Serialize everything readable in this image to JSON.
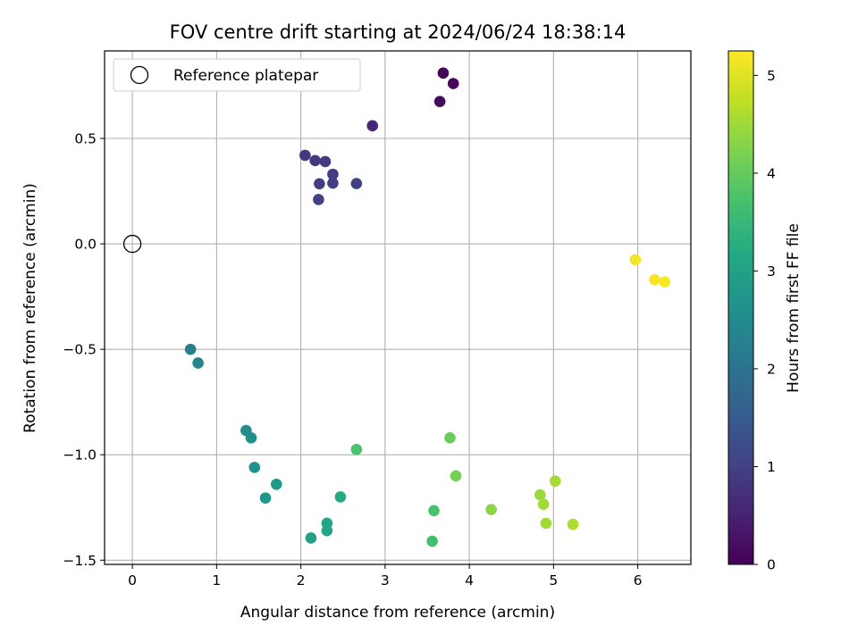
{
  "chart_data": {
    "type": "scatter",
    "title": "FOV centre drift starting at 2024/06/24 18:38:14",
    "xlabel": "Angular distance from reference (arcmin)",
    "ylabel": "Rotation from reference (arcmin)",
    "xlim": [
      -0.33,
      6.63
    ],
    "ylim": [
      -1.52,
      0.915
    ],
    "xticks": [
      0,
      1,
      2,
      3,
      4,
      5,
      6
    ],
    "yticks": [
      -1.5,
      -1.0,
      -0.5,
      0.0,
      0.5
    ],
    "ytick_labels": [
      "−1.5",
      "−1.0",
      "−0.5",
      "0.0",
      "0.5"
    ],
    "grid": true,
    "legend": {
      "placement": "top-left",
      "entries": [
        "Reference platepar"
      ]
    },
    "reference_point": {
      "x": 0.0,
      "y": 0.0,
      "label": "Reference platepar"
    },
    "colorbar": {
      "label": "Hours from first FF file",
      "range": [
        0,
        5.25
      ],
      "ticks": [
        0,
        1,
        2,
        3,
        4,
        5
      ],
      "colormap": "viridis"
    },
    "points": [
      {
        "x": 3.69,
        "y": 0.81,
        "hours": 0.05
      },
      {
        "x": 3.81,
        "y": 0.76,
        "hours": 0.1
      },
      {
        "x": 3.65,
        "y": 0.675,
        "hours": 0.15
      },
      {
        "x": 2.85,
        "y": 0.56,
        "hours": 0.55
      },
      {
        "x": 2.05,
        "y": 0.42,
        "hours": 0.85
      },
      {
        "x": 2.17,
        "y": 0.395,
        "hours": 0.88
      },
      {
        "x": 2.29,
        "y": 0.39,
        "hours": 0.9
      },
      {
        "x": 2.38,
        "y": 0.33,
        "hours": 0.92
      },
      {
        "x": 2.22,
        "y": 0.285,
        "hours": 0.95
      },
      {
        "x": 2.38,
        "y": 0.288,
        "hours": 0.96
      },
      {
        "x": 2.66,
        "y": 0.286,
        "hours": 0.98
      },
      {
        "x": 2.21,
        "y": 0.21,
        "hours": 1.0
      },
      {
        "x": 0.69,
        "y": -0.5,
        "hours": 2.25
      },
      {
        "x": 0.78,
        "y": -0.565,
        "hours": 2.35
      },
      {
        "x": 1.35,
        "y": -0.885,
        "hours": 2.55
      },
      {
        "x": 1.41,
        "y": -0.92,
        "hours": 2.6
      },
      {
        "x": 1.45,
        "y": -1.06,
        "hours": 2.65
      },
      {
        "x": 1.58,
        "y": -1.205,
        "hours": 2.75
      },
      {
        "x": 1.71,
        "y": -1.14,
        "hours": 2.85
      },
      {
        "x": 2.12,
        "y": -1.395,
        "hours": 3.0
      },
      {
        "x": 2.31,
        "y": -1.325,
        "hours": 3.05
      },
      {
        "x": 2.31,
        "y": -1.36,
        "hours": 3.1
      },
      {
        "x": 2.47,
        "y": -1.2,
        "hours": 3.2
      },
      {
        "x": 2.66,
        "y": -0.975,
        "hours": 3.75
      },
      {
        "x": 3.56,
        "y": -1.41,
        "hours": 3.65
      },
      {
        "x": 3.58,
        "y": -1.265,
        "hours": 3.7
      },
      {
        "x": 3.77,
        "y": -0.92,
        "hours": 4.05
      },
      {
        "x": 3.84,
        "y": -1.1,
        "hours": 4.15
      },
      {
        "x": 4.26,
        "y": -1.26,
        "hours": 4.35
      },
      {
        "x": 4.84,
        "y": -1.19,
        "hours": 4.45
      },
      {
        "x": 4.88,
        "y": -1.235,
        "hours": 4.5
      },
      {
        "x": 4.91,
        "y": -1.325,
        "hours": 4.52
      },
      {
        "x": 5.02,
        "y": -1.125,
        "hours": 4.55
      },
      {
        "x": 5.23,
        "y": -1.33,
        "hours": 4.6
      },
      {
        "x": 5.97,
        "y": -0.075,
        "hours": 5.15
      },
      {
        "x": 6.2,
        "y": -0.17,
        "hours": 5.2
      },
      {
        "x": 6.32,
        "y": -0.18,
        "hours": 5.22
      }
    ]
  }
}
